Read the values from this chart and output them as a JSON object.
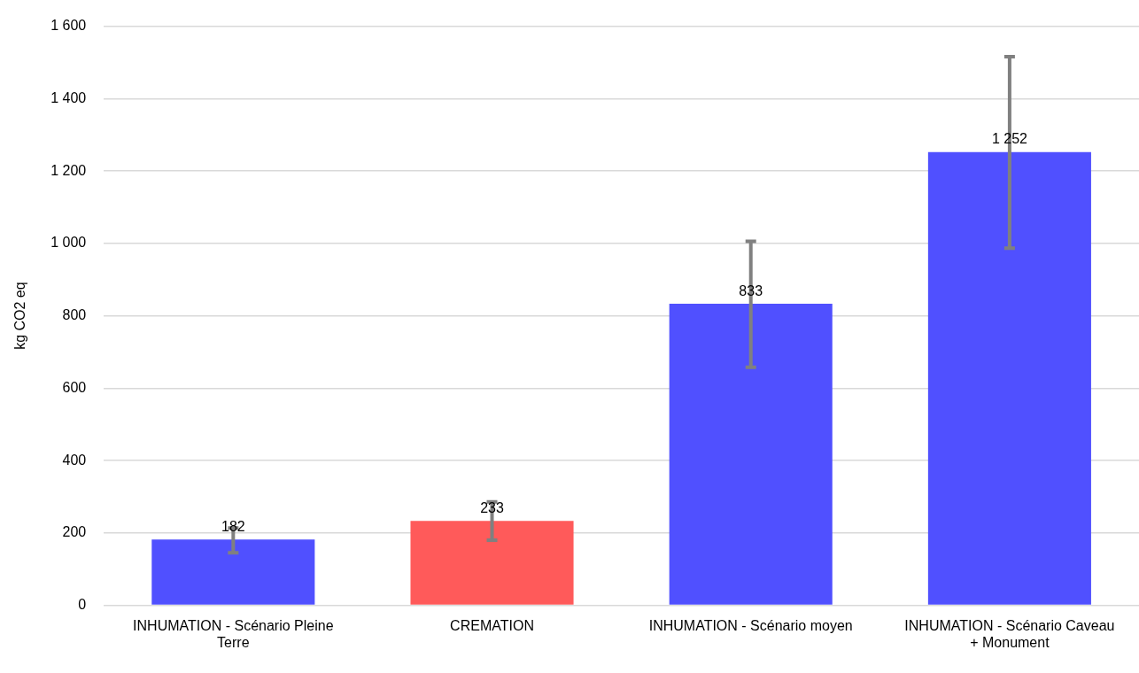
{
  "chart_data": {
    "type": "bar",
    "ylabel": "kg CO2 eq",
    "categories": [
      "INHUMATION - Scénario Pleine Terre",
      "CREMATION",
      "INHUMATION - Scénario moyen",
      "INHUMATION - Scénario Caveau + Monument"
    ],
    "values": [
      182,
      233,
      833,
      1252
    ],
    "colors": [
      "#5050ff",
      "#ff5a5a",
      "#5050ff",
      "#5050ff"
    ],
    "errors": [
      [
        145,
        214
      ],
      [
        180,
        286
      ],
      [
        658,
        1006
      ],
      [
        987,
        1516
      ]
    ],
    "value_labels": [
      "182",
      "233",
      "833",
      "1 252"
    ],
    "ylim": [
      0,
      1600
    ],
    "yticks": [
      0,
      200,
      400,
      600,
      800,
      {
        "value": 1000,
        "label": "1 000"
      },
      {
        "value": 1200,
        "label": "1 200"
      },
      {
        "value": 1400,
        "label": "1 400"
      },
      {
        "value": 1600,
        "label": "1 600"
      }
    ],
    "grid": "y",
    "legend": false
  }
}
